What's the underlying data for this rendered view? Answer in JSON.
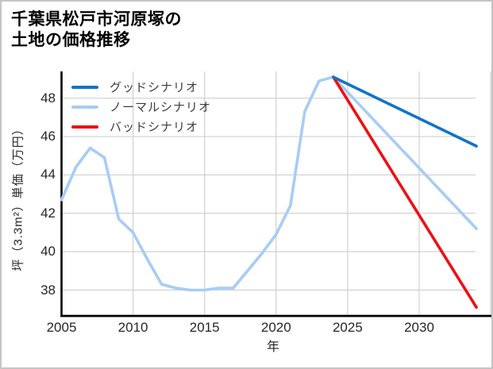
{
  "window": {
    "background": "#ffffff",
    "border_color": "#c5c5c5"
  },
  "title": {
    "line1": "千葉県松戸市河原塚の",
    "line2": "土地の価格推移"
  },
  "axes": {
    "x_label": "年",
    "y_label": "坪（3.3m²）単価（万円）"
  },
  "legend": {
    "items": [
      {
        "label": "グッドシナリオ",
        "color": "#1273c8"
      },
      {
        "label": "ノーマルシナリオ",
        "color": "#a7cdf4"
      },
      {
        "label": "バッドシナリオ",
        "color": "#ef0f14"
      }
    ]
  },
  "chart_data": {
    "type": "line",
    "title": "千葉県松戸市河原塚の 土地の価格推移",
    "xlabel": "年",
    "ylabel": "坪（3.3m²）単価（万円）",
    "x_range": [
      2005,
      2035
    ],
    "y_plot_range": [
      36.7,
      49.4
    ],
    "x_ticks": [
      2005,
      2010,
      2015,
      2020,
      2025,
      2030
    ],
    "x_gridlines": [
      2010,
      2015,
      2020,
      2025,
      2030,
      2035
    ],
    "y_ticks": [
      38,
      40,
      42,
      44,
      46,
      48
    ],
    "grid": true,
    "legend_position": "top-left",
    "colors": {
      "grid": "#d0d0d0",
      "spine": "#000000"
    },
    "series": [
      {
        "name": "グッドシナリオ",
        "color": "#1273c8",
        "x": [
          2024,
          2034
        ],
        "values": [
          49.1,
          45.5
        ]
      },
      {
        "name": "ノーマルシナリオ",
        "color": "#a7cdf4",
        "x": [
          2005,
          2006,
          2007,
          2008,
          2009,
          2010,
          2011,
          2012,
          2013,
          2014,
          2015,
          2016,
          2017,
          2018,
          2019,
          2020,
          2021,
          2022,
          2023,
          2024,
          2034
        ],
        "values": [
          42.7,
          44.4,
          45.4,
          44.9,
          41.7,
          41.0,
          39.6,
          38.3,
          38.1,
          38.0,
          38.0,
          38.1,
          38.1,
          39.0,
          39.9,
          40.9,
          42.4,
          47.3,
          48.9,
          49.1,
          41.2
        ]
      },
      {
        "name": "バッドシナリオ",
        "color": "#ef0f14",
        "x": [
          2024,
          2034
        ],
        "values": [
          49.1,
          37.1
        ]
      }
    ]
  }
}
